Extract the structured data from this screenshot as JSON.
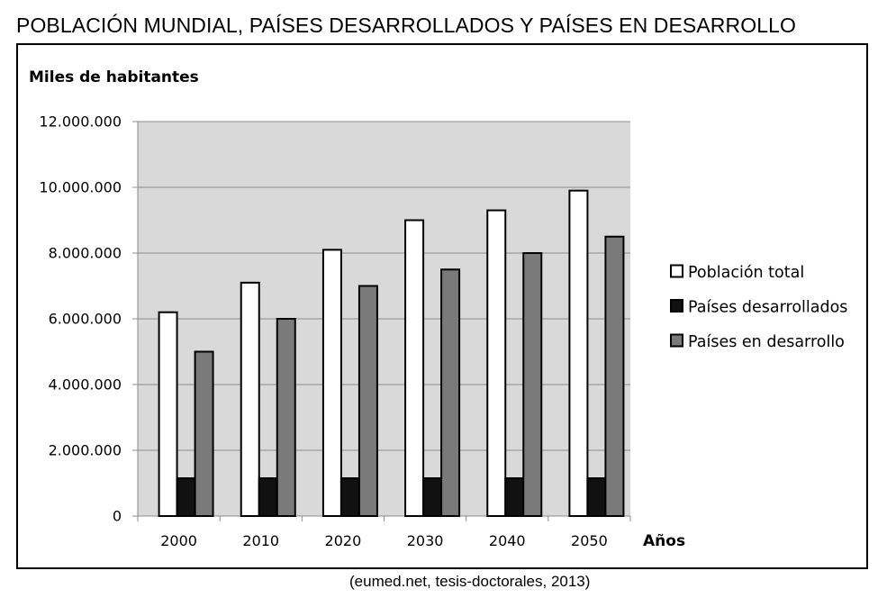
{
  "title": "POBLACIÓN MUNDIAL, PAÍSES DESARROLLADOS Y PAÍSES EN DESARROLLO",
  "source": "(eumed.net, tesis-doctorales, 2013)",
  "chart_data": {
    "type": "bar",
    "ylabel": "Miles de habitantes",
    "xlabel": "Años",
    "categories": [
      "2000",
      "2010",
      "2020",
      "2030",
      "2040",
      "2050"
    ],
    "ylim": [
      0,
      12000000
    ],
    "yticks": [
      0,
      2000000,
      4000000,
      6000000,
      8000000,
      10000000,
      12000000
    ],
    "ytick_labels": [
      "0",
      "2.000.000",
      "4.000.000",
      "6.000.000",
      "8.000.000",
      "10.000.000",
      "12.000.000"
    ],
    "grid": true,
    "legend_position": "right",
    "series": [
      {
        "name": "Población total",
        "color": "#ffffff",
        "values": [
          6200000,
          7100000,
          8100000,
          9000000,
          9300000,
          9900000
        ]
      },
      {
        "name": "Países desarrollados",
        "color": "#111111",
        "values": [
          1150000,
          1150000,
          1150000,
          1150000,
          1150000,
          1150000
        ]
      },
      {
        "name": "Países en desarrollo",
        "color": "#7a7a7a",
        "values": [
          5000000,
          6000000,
          7000000,
          7500000,
          8000000,
          8500000
        ]
      }
    ]
  }
}
